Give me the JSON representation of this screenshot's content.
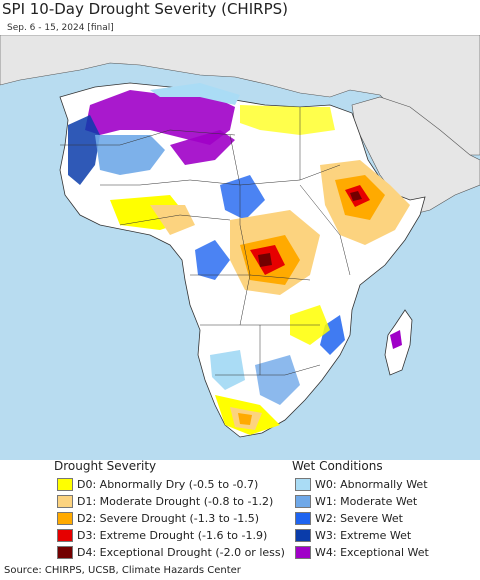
{
  "title": "SPI 10-Day Drought Severity (CHIRPS)",
  "subtitle": "Sep. 6 - 15, 2024 [final]",
  "source": "Source: CHIRPS, UCSB, Climate Hazards Center",
  "drought_legend": {
    "heading": "Drought Severity",
    "items": [
      {
        "label": "D0: Abnormally Dry (-0.5 to -0.7)",
        "color": "#ffff00"
      },
      {
        "label": "D1: Moderate Drought (-0.8 to -1.2)",
        "color": "#fcd37f"
      },
      {
        "label": "D2: Severe Drought (-1.3 to -1.5)",
        "color": "#ffaa00"
      },
      {
        "label": "D3: Extreme Drought (-1.6 to -1.9)",
        "color": "#e60000"
      },
      {
        "label": "D4: Exceptional Drought (-2.0 or less)",
        "color": "#730000"
      }
    ]
  },
  "wet_legend": {
    "heading": "Wet Conditions",
    "items": [
      {
        "label": "W0: Abnormally Wet",
        "color": "#aadcf5"
      },
      {
        "label": "W1: Moderate Wet",
        "color": "#6fa8e8"
      },
      {
        "label": "W2: Severe Wet",
        "color": "#1e64f0"
      },
      {
        "label": "W3: Extreme Wet",
        "color": "#0a3caa"
      },
      {
        "label": "W4: Exceptional Wet",
        "color": "#a000c8"
      }
    ]
  },
  "map": {
    "ocean_color": "#b8dcf0",
    "non_africa_land_color": "#e6e6e6",
    "africa_base_color": "#ffffff"
  }
}
